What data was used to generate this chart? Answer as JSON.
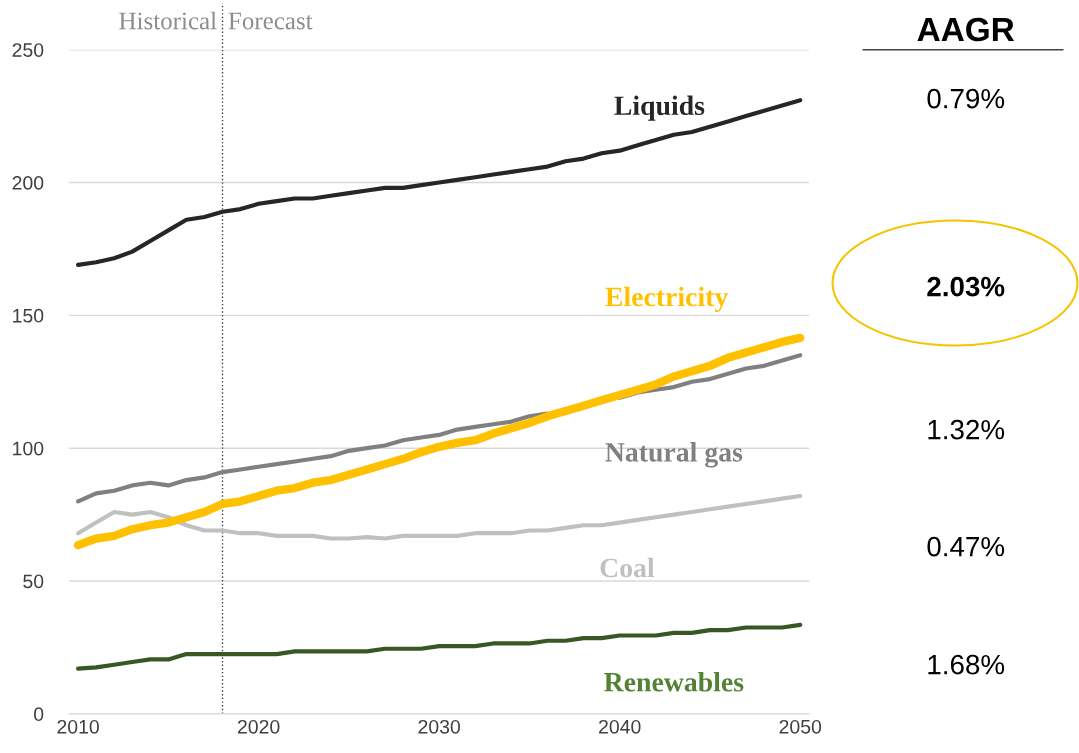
{
  "chart_data": {
    "type": "line",
    "x": [
      2010,
      2011,
      2012,
      2013,
      2014,
      2015,
      2016,
      2017,
      2018,
      2019,
      2020,
      2021,
      2022,
      2023,
      2024,
      2025,
      2026,
      2027,
      2028,
      2029,
      2030,
      2031,
      2032,
      2033,
      2034,
      2035,
      2036,
      2037,
      2038,
      2039,
      2040,
      2041,
      2042,
      2043,
      2044,
      2045,
      2046,
      2047,
      2048,
      2049,
      2050
    ],
    "series": [
      {
        "name": "Liquids",
        "color": "#262626",
        "values": [
          169,
          170,
          171.5,
          174,
          178,
          182,
          186,
          187,
          189,
          190,
          192,
          193,
          194,
          194,
          195,
          196,
          197,
          198,
          198,
          199,
          200,
          201,
          202,
          203,
          204,
          205,
          206,
          208,
          209,
          211,
          212,
          214,
          216,
          218,
          219,
          221,
          223,
          225,
          227,
          229,
          231
        ]
      },
      {
        "name": "Electricity",
        "color": "#ffc000",
        "values": [
          63.5,
          66,
          67,
          69.5,
          71,
          72,
          74,
          76,
          79,
          80,
          82,
          84,
          85,
          87,
          88,
          90,
          92,
          94,
          96,
          98.5,
          100.5,
          102,
          103,
          105.5,
          107.5,
          109.5,
          112,
          114,
          116,
          118,
          120,
          122,
          124,
          127,
          129,
          131,
          134,
          136,
          138,
          140,
          141.5
        ]
      },
      {
        "name": "Natural gas",
        "color": "#808080",
        "values": [
          80,
          83,
          84,
          86,
          87,
          86,
          88,
          89,
          91,
          92,
          93,
          94,
          95,
          96,
          97,
          99,
          100,
          101,
          103,
          104,
          105,
          107,
          108,
          109,
          110,
          112,
          113,
          null,
          null,
          null,
          119,
          121,
          122,
          123,
          125,
          126,
          128,
          130,
          131,
          133,
          135
        ]
      },
      {
        "name": "Coal",
        "color": "#c0c0c0",
        "values": [
          68,
          72,
          76,
          75,
          76,
          74,
          71,
          69,
          69,
          68,
          68,
          67,
          67,
          67,
          66,
          66,
          66.5,
          66,
          67,
          67,
          67,
          67,
          68,
          68,
          68,
          69,
          69,
          70,
          71,
          71,
          72,
          73,
          74,
          75,
          76,
          77,
          78,
          79,
          80,
          81,
          82
        ]
      },
      {
        "name": "Renewables",
        "color": "#385723",
        "values": [
          17,
          17.5,
          18.5,
          19.5,
          20.5,
          20.5,
          22.5,
          22.5,
          22.5,
          22.5,
          22.5,
          22.5,
          23.5,
          23.5,
          23.5,
          23.5,
          23.5,
          24.5,
          24.5,
          24.5,
          25.5,
          25.5,
          25.5,
          26.5,
          26.5,
          26.5,
          27.5,
          27.5,
          28.5,
          28.5,
          29.5,
          29.5,
          29.5,
          30.5,
          30.5,
          31.5,
          31.5,
          32.5,
          32.5,
          32.5,
          33.5
        ]
      }
    ],
    "xlim": [
      2009.5,
      2050.5
    ],
    "xticks": [
      2010,
      2020,
      2030,
      2040,
      2050
    ],
    "ylim": [
      0,
      250
    ],
    "yticks": [
      0,
      50,
      100,
      150,
      200,
      250
    ],
    "grid": "y",
    "legend": false,
    "marker": "none",
    "line_style": "solid",
    "ref_lines": [
      {
        "axis": "x",
        "value": 2018,
        "color": "#404040",
        "line_style": "dotted"
      }
    ],
    "annotations": [
      "Historical",
      "Forecast",
      "AAGR",
      "0.79%",
      "2.03%",
      "1.32%",
      "0.47%",
      "1.68%"
    ]
  }
}
